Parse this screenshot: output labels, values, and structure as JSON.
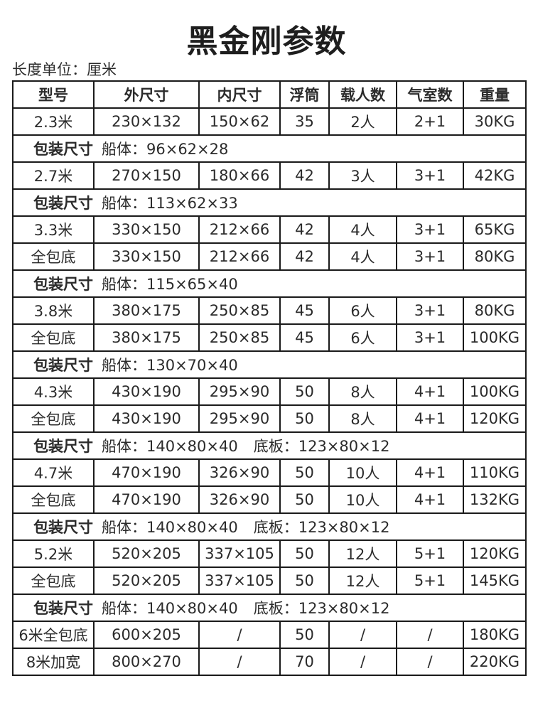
{
  "title": "黑金刚参数",
  "unit_note": "长度单位：厘米",
  "headers": [
    "型号",
    "外尺寸",
    "内尺寸",
    "浮筒",
    "载人数",
    "气室数",
    "重量"
  ],
  "rows": [
    {
      "type": "data",
      "cells": [
        "2.3米",
        "230×132",
        "150×62",
        "35",
        "2人",
        "2+1",
        "30KG"
      ]
    },
    {
      "type": "pack",
      "label": "包装尺寸",
      "hull": "船体：96×62×28",
      "floor": ""
    },
    {
      "type": "data",
      "cells": [
        "2.7米",
        "270×150",
        "180×66",
        "42",
        "3人",
        "3+1",
        "42KG"
      ]
    },
    {
      "type": "pack",
      "label": "包装尺寸",
      "hull": "船体：113×62×33",
      "floor": ""
    },
    {
      "type": "data",
      "cells": [
        "3.3米",
        "330×150",
        "212×66",
        "42",
        "4人",
        "3+1",
        "65KG"
      ]
    },
    {
      "type": "data",
      "cells": [
        "全包底",
        "330×150",
        "212×66",
        "42",
        "4人",
        "3+1",
        "80KG"
      ]
    },
    {
      "type": "pack",
      "label": "包装尺寸",
      "hull": "船体：115×65×40",
      "floor": ""
    },
    {
      "type": "data",
      "cells": [
        "3.8米",
        "380×175",
        "250×85",
        "45",
        "6人",
        "3+1",
        "80KG"
      ]
    },
    {
      "type": "data",
      "cells": [
        "全包底",
        "380×175",
        "250×85",
        "45",
        "6人",
        "3+1",
        "100KG"
      ]
    },
    {
      "type": "pack",
      "label": "包装尺寸",
      "hull": "船体：130×70×40",
      "floor": ""
    },
    {
      "type": "data",
      "cells": [
        "4.3米",
        "430×190",
        "295×90",
        "50",
        "8人",
        "4+1",
        "100KG"
      ]
    },
    {
      "type": "data",
      "cells": [
        "全包底",
        "430×190",
        "295×90",
        "50",
        "8人",
        "4+1",
        "120KG"
      ]
    },
    {
      "type": "pack",
      "label": "包装尺寸",
      "hull": "船体：140×80×40",
      "floor": "底板：123×80×12"
    },
    {
      "type": "data",
      "cells": [
        "4.7米",
        "470×190",
        "326×90",
        "50",
        "10人",
        "4+1",
        "110KG"
      ]
    },
    {
      "type": "data",
      "cells": [
        "全包底",
        "470×190",
        "326×90",
        "50",
        "10人",
        "4+1",
        "132KG"
      ]
    },
    {
      "type": "pack",
      "label": "包装尺寸",
      "hull": "船体：140×80×40",
      "floor": "底板：123×80×12"
    },
    {
      "type": "data",
      "cells": [
        "5.2米",
        "520×205",
        "337×105",
        "50",
        "12人",
        "5+1",
        "120KG"
      ]
    },
    {
      "type": "data",
      "cells": [
        "全包底",
        "520×205",
        "337×105",
        "50",
        "12人",
        "5+1",
        "145KG"
      ]
    },
    {
      "type": "pack",
      "label": "包装尺寸",
      "hull": "船体：140×80×40",
      "floor": "底板：123×80×12"
    },
    {
      "type": "data",
      "cells": [
        "6米全包底",
        "600×205",
        "/",
        "50",
        "/",
        "/",
        "180KG"
      ]
    },
    {
      "type": "data",
      "cells": [
        "8米加宽",
        "800×270",
        "/",
        "70",
        "/",
        "/",
        "220KG"
      ]
    }
  ]
}
